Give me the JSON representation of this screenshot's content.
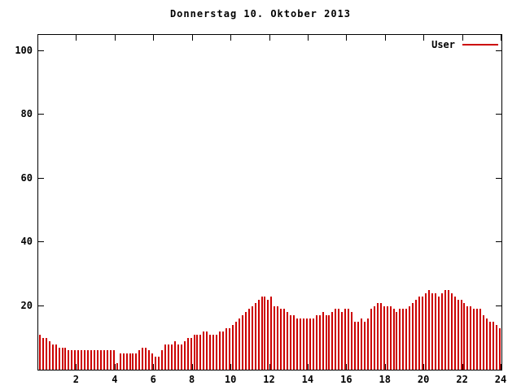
{
  "chart": {
    "title": "Donnerstag 10. Oktober 2013",
    "legend": {
      "label": "User",
      "color": "#cc0000"
    }
  },
  "chart_data": {
    "type": "bar",
    "title": "Donnerstag 10. Oktober 2013",
    "xlabel": "",
    "ylabel": "",
    "xlim": [
      0,
      24
    ],
    "ylim": [
      0,
      105
    ],
    "xticks": [
      2,
      4,
      6,
      8,
      10,
      12,
      14,
      16,
      18,
      20,
      22,
      24
    ],
    "yticks": [
      20,
      40,
      60,
      80,
      100
    ],
    "grid": false,
    "legend_position": "top-right",
    "x_start_hour": 0,
    "x_step_minutes": 10,
    "series": [
      {
        "name": "User",
        "color": "#cc0000",
        "values": [
          11,
          10,
          10,
          9,
          8,
          8,
          7,
          7,
          7,
          6,
          6,
          6,
          6,
          6,
          6,
          6,
          6,
          6,
          6,
          6,
          6,
          6,
          6,
          6,
          2,
          5,
          5,
          5,
          5,
          5,
          5,
          6,
          7,
          7,
          6,
          5,
          4,
          4,
          6,
          8,
          8,
          8,
          9,
          8,
          8,
          9,
          10,
          10,
          11,
          11,
          11,
          12,
          12,
          11,
          11,
          11,
          12,
          12,
          13,
          13,
          14,
          15,
          16,
          17,
          18,
          19,
          20,
          21,
          22,
          23,
          23,
          22,
          23,
          20,
          20,
          19,
          19,
          18,
          17,
          17,
          16,
          16,
          16,
          16,
          16,
          16,
          17,
          17,
          18,
          17,
          17,
          18,
          19,
          19,
          18,
          19,
          19,
          18,
          15,
          15,
          16,
          15,
          16,
          19,
          20,
          21,
          21,
          20,
          20,
          20,
          19,
          18,
          19,
          19,
          19,
          20,
          21,
          22,
          23,
          23,
          24,
          25,
          24,
          24,
          23,
          24,
          25,
          25,
          24,
          23,
          22,
          22,
          21,
          20,
          20,
          19,
          19,
          19,
          17,
          16,
          15,
          15,
          14,
          13
        ]
      }
    ]
  }
}
